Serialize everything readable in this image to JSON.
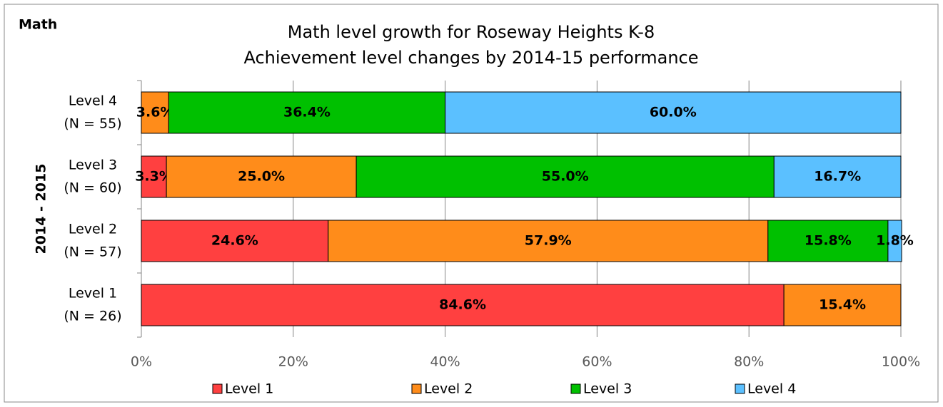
{
  "chart_data": {
    "type": "stacked-barh",
    "corner_label": "Math",
    "title": "Math level growth for Roseway Heights K-8",
    "subtitle": "Achievement level changes by 2014-15 performance",
    "y_label": "2014 - 2015",
    "categories": [
      [
        "Level 4",
        "(N = 55)"
      ],
      [
        "Level 3",
        "(N = 60)"
      ],
      [
        "Level 2",
        "(N = 57)"
      ],
      [
        "Level 1",
        "(N = 26)"
      ]
    ],
    "series": [
      {
        "name": "Level 1",
        "color": "#ff4040",
        "values": [
          null,
          3.3,
          24.6,
          84.6
        ],
        "value_labels": [
          null,
          "3.3%",
          "24.6%",
          "84.6%"
        ]
      },
      {
        "name": "Level 2",
        "color": "#ff8c1a",
        "values": [
          3.6,
          25.0,
          57.9,
          15.4
        ],
        "value_labels": [
          "3.6%",
          "25.0%",
          "57.9%",
          "15.4%"
        ]
      },
      {
        "name": "Level 3",
        "color": "#00c000",
        "values": [
          36.4,
          55.0,
          15.8,
          null
        ],
        "value_labels": [
          "36.4%",
          "55.0%",
          "15.8%",
          null
        ]
      },
      {
        "name": "Level 4",
        "color": "#5bc0ff",
        "values": [
          60.0,
          16.7,
          1.8,
          null
        ],
        "value_labels": [
          "60.0%",
          "16.7%",
          "1.8%",
          null
        ]
      }
    ],
    "xlim": [
      0,
      100
    ],
    "xticks": [
      {
        "value": 0,
        "label": "0%"
      },
      {
        "value": 20,
        "label": "20%"
      },
      {
        "value": 40,
        "label": "40%"
      },
      {
        "value": 60,
        "label": "60%"
      },
      {
        "value": 80,
        "label": "80%"
      },
      {
        "value": 100,
        "label": "100%"
      }
    ],
    "grid": true,
    "legend": "bottom"
  }
}
